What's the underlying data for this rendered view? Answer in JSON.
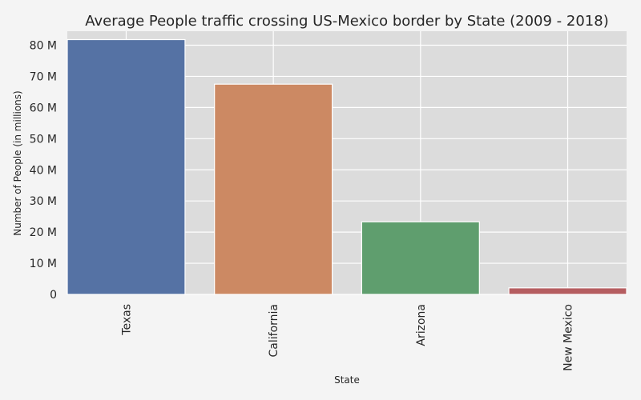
{
  "chart_data": {
    "type": "bar",
    "title": "Average People traffic crossing US-Mexico border by State (2009 - 2018)",
    "xlabel": "State",
    "ylabel": "Number of People (in millions)",
    "categories": [
      "Texas",
      "California",
      "Arizona",
      "New Mexico"
    ],
    "values": [
      81.8,
      67.5,
      23.3,
      2.1
    ],
    "ylim": [
      0,
      84.5
    ],
    "yticks": [
      0,
      10,
      20,
      30,
      40,
      50,
      60,
      70,
      80
    ],
    "ytick_labels": [
      "0",
      "10 M",
      "20 M",
      "30 M",
      "40 M",
      "50 M",
      "60 M",
      "70 M",
      "80 M"
    ],
    "grid": true,
    "colors": [
      "#5572a4",
      "#cc8963",
      "#5f9e6e",
      "#b55d60"
    ],
    "background": "#dcdcdc",
    "page_background": "#f4f4f4"
  }
}
